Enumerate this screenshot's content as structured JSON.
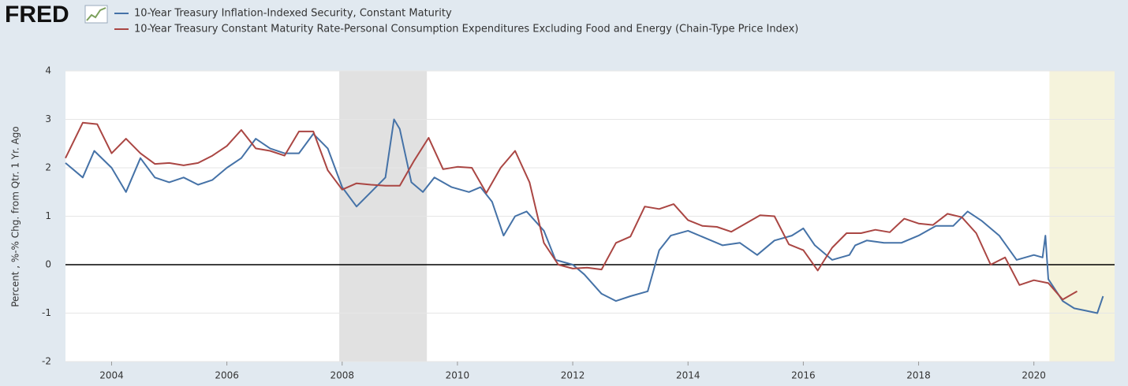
{
  "chart_data": {
    "type": "line",
    "logo": "FRED",
    "y_axis_label": "Percent , %-% Chg. from Qtr. 1 Yr. Ago",
    "xlim": [
      2003.2,
      2021.4
    ],
    "xticks": [
      2004,
      2006,
      2008,
      2010,
      2012,
      2014,
      2016,
      2018,
      2020
    ],
    "ylim": [
      -2,
      4
    ],
    "yticks": [
      -2,
      -1,
      0,
      1,
      2,
      3,
      4
    ],
    "grid": true,
    "zero_line": true,
    "shaded_regions": [
      {
        "x": [
          2007.95,
          2009.47
        ],
        "color": "#e1e1e1"
      },
      {
        "x": [
          2020.27,
          2021.4
        ],
        "color": "#f5f3dc"
      }
    ],
    "series": [
      {
        "name": "10-Year Treasury Inflation-Indexed Security, Constant Maturity",
        "color": "#4572a7",
        "x": [
          2003.2,
          2003.5,
          2003.7,
          2004.0,
          2004.25,
          2004.5,
          2004.75,
          2005.0,
          2005.25,
          2005.5,
          2005.75,
          2006.0,
          2006.25,
          2006.5,
          2006.75,
          2007.0,
          2007.25,
          2007.5,
          2007.75,
          2008.0,
          2008.25,
          2008.5,
          2008.75,
          2008.9,
          2009.0,
          2009.2,
          2009.4,
          2009.6,
          2009.9,
          2010.2,
          2010.4,
          2010.6,
          2010.8,
          2011.0,
          2011.2,
          2011.5,
          2011.7,
          2012.0,
          2012.2,
          2012.5,
          2012.75,
          2013.0,
          2013.3,
          2013.5,
          2013.7,
          2014.0,
          2014.3,
          2014.6,
          2014.9,
          2015.2,
          2015.5,
          2015.8,
          2016.0,
          2016.2,
          2016.5,
          2016.8,
          2016.9,
          2017.1,
          2017.4,
          2017.7,
          2018.0,
          2018.3,
          2018.6,
          2018.85,
          2019.1,
          2019.4,
          2019.7,
          2020.0,
          2020.15,
          2020.2,
          2020.25,
          2020.5,
          2020.7,
          2020.9,
          2021.1,
          2021.2
        ],
        "values": [
          2.1,
          1.8,
          2.35,
          2.0,
          1.5,
          2.2,
          1.8,
          1.7,
          1.8,
          1.65,
          1.75,
          2.0,
          2.2,
          2.6,
          2.4,
          2.3,
          2.3,
          2.7,
          2.4,
          1.6,
          1.2,
          1.5,
          1.8,
          3.0,
          2.8,
          1.7,
          1.5,
          1.8,
          1.6,
          1.5,
          1.6,
          1.3,
          0.6,
          1.0,
          1.1,
          0.7,
          0.1,
          0.0,
          -0.2,
          -0.6,
          -0.75,
          -0.65,
          -0.55,
          0.3,
          0.6,
          0.7,
          0.55,
          0.4,
          0.45,
          0.2,
          0.5,
          0.6,
          0.75,
          0.4,
          0.1,
          0.2,
          0.4,
          0.5,
          0.45,
          0.45,
          0.6,
          0.8,
          0.8,
          1.1,
          0.9,
          0.6,
          0.1,
          0.2,
          0.15,
          0.6,
          -0.3,
          -0.75,
          -0.9,
          -0.95,
          -1.0,
          -0.65
        ]
      },
      {
        "name": "10-Year Treasury Constant Maturity Rate-Personal Consumption Expenditures Excluding Food and Energy (Chain-Type Price Index)",
        "color": "#aa4643",
        "x": [
          2003.2,
          2003.5,
          2003.75,
          2004.0,
          2004.25,
          2004.5,
          2004.75,
          2005.0,
          2005.25,
          2005.5,
          2005.75,
          2006.0,
          2006.25,
          2006.5,
          2006.75,
          2007.0,
          2007.25,
          2007.5,
          2007.75,
          2008.0,
          2008.25,
          2008.5,
          2008.75,
          2009.0,
          2009.25,
          2009.5,
          2009.75,
          2010.0,
          2010.25,
          2010.5,
          2010.75,
          2011.0,
          2011.25,
          2011.5,
          2011.75,
          2012.0,
          2012.25,
          2012.5,
          2012.75,
          2013.0,
          2013.25,
          2013.5,
          2013.75,
          2014.0,
          2014.25,
          2014.5,
          2014.75,
          2015.0,
          2015.25,
          2015.5,
          2015.75,
          2016.0,
          2016.25,
          2016.5,
          2016.75,
          2017.0,
          2017.25,
          2017.5,
          2017.75,
          2018.0,
          2018.25,
          2018.5,
          2018.75,
          2019.0,
          2019.25,
          2019.5,
          2019.75,
          2020.0,
          2020.25,
          2020.5,
          2020.75
        ],
        "values": [
          2.2,
          2.93,
          2.9,
          2.3,
          2.6,
          2.3,
          2.08,
          2.1,
          2.05,
          2.1,
          2.25,
          2.45,
          2.78,
          2.4,
          2.35,
          2.25,
          2.75,
          2.75,
          1.95,
          1.55,
          1.68,
          1.65,
          1.63,
          1.63,
          2.15,
          2.62,
          1.97,
          2.02,
          2.0,
          1.48,
          2.0,
          2.35,
          1.7,
          0.45,
          0.0,
          -0.08,
          -0.06,
          -0.1,
          0.45,
          0.58,
          1.2,
          1.15,
          1.25,
          0.92,
          0.8,
          0.78,
          0.68,
          0.85,
          1.02,
          1.0,
          0.42,
          0.3,
          -0.12,
          0.35,
          0.65,
          0.65,
          0.72,
          0.67,
          0.95,
          0.85,
          0.82,
          1.05,
          0.98,
          0.65,
          0.0,
          0.15,
          -0.42,
          -0.32,
          -0.38,
          -0.72,
          -0.55
        ]
      }
    ]
  }
}
